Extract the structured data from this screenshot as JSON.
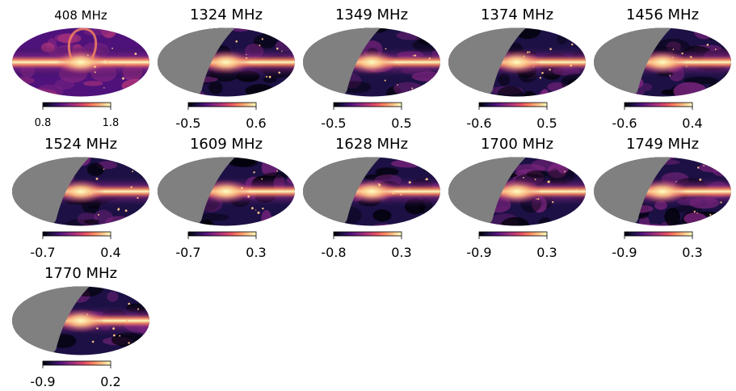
{
  "chart_data": [
    {
      "type": "heatmap",
      "title": "408 MHz",
      "colorbar": {
        "min": 0.8,
        "max": 1.8
      },
      "masked": false,
      "colormap": "magma"
    },
    {
      "type": "heatmap",
      "title": "1324 MHz",
      "colorbar": {
        "min": -0.5,
        "max": 0.6
      },
      "masked": true,
      "colormap": "magma"
    },
    {
      "type": "heatmap",
      "title": "1349 MHz",
      "colorbar": {
        "min": -0.5,
        "max": 0.5
      },
      "masked": true,
      "colormap": "magma"
    },
    {
      "type": "heatmap",
      "title": "1374 MHz",
      "colorbar": {
        "min": -0.6,
        "max": 0.5
      },
      "masked": true,
      "colormap": "magma"
    },
    {
      "type": "heatmap",
      "title": "1456 MHz",
      "colorbar": {
        "min": -0.6,
        "max": 0.4
      },
      "masked": true,
      "colormap": "magma"
    },
    {
      "type": "heatmap",
      "title": "1524 MHz",
      "colorbar": {
        "min": -0.7,
        "max": 0.4
      },
      "masked": true,
      "colormap": "magma"
    },
    {
      "type": "heatmap",
      "title": "1609 MHz",
      "colorbar": {
        "min": -0.7,
        "max": 0.3
      },
      "masked": true,
      "colormap": "magma"
    },
    {
      "type": "heatmap",
      "title": "1628 MHz",
      "colorbar": {
        "min": -0.8,
        "max": 0.3
      },
      "masked": true,
      "colormap": "magma"
    },
    {
      "type": "heatmap",
      "title": "1700 MHz",
      "colorbar": {
        "min": -0.9,
        "max": 0.3
      },
      "masked": true,
      "colormap": "magma"
    },
    {
      "type": "heatmap",
      "title": "1749 MHz",
      "colorbar": {
        "min": -0.9,
        "max": 0.3
      },
      "masked": true,
      "colormap": "magma"
    },
    {
      "type": "heatmap",
      "title": "1770 MHz",
      "colorbar": {
        "min": -0.9,
        "max": 0.2
      },
      "masked": true,
      "colormap": "magma"
    }
  ],
  "colors": {
    "mask": "#808080",
    "magma": [
      "#000004",
      "#1c1044",
      "#4f127b",
      "#812581",
      "#b5367a",
      "#e55064",
      "#fb8761",
      "#fec287",
      "#fcfdbf"
    ]
  }
}
